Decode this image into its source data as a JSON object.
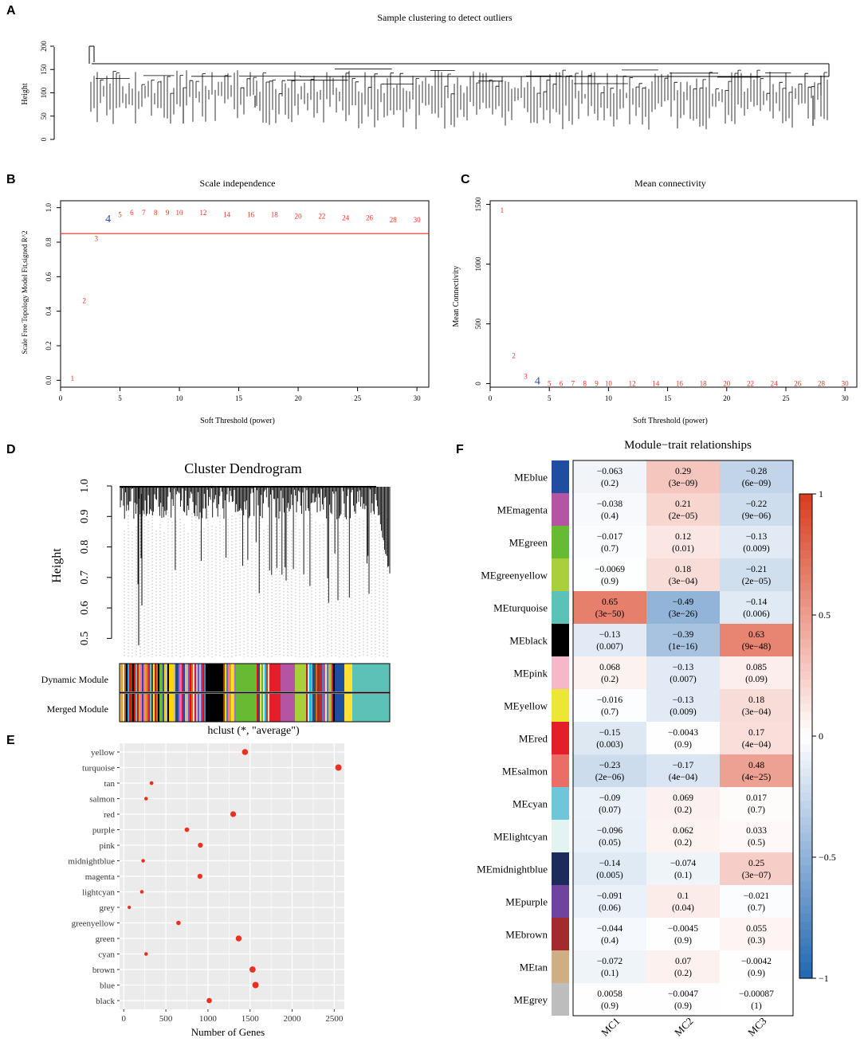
{
  "panels": {
    "A": {
      "letter": "A",
      "chart_data": {
        "type": "dendrogram",
        "title": "Sample clustering to detect outliers",
        "ylabel": "Height",
        "yticks": [
          0,
          50,
          100,
          150,
          200
        ],
        "ylim": [
          0,
          210
        ]
      }
    },
    "B": {
      "letter": "B",
      "chart_data": {
        "type": "scatter",
        "title": "Scale independence",
        "xlabel": "Soft Threshold (power)",
        "ylabel": "Scale Free Topology Model Fit,signed R^2",
        "xlim": [
          0,
          31
        ],
        "ylim": [
          -0.04,
          1.04
        ],
        "xticks": [
          0,
          5,
          10,
          15,
          20,
          25,
          30
        ],
        "yticks": [
          "0.0",
          "0.2",
          "0.4",
          "0.6",
          "0.8",
          "1.0"
        ],
        "hline": 0.85,
        "highlight_power": 4,
        "x": [
          1,
          2,
          3,
          4,
          5,
          6,
          7,
          8,
          9,
          10,
          12,
          14,
          16,
          18,
          20,
          22,
          24,
          26,
          28,
          30
        ],
        "y": [
          0.01,
          0.46,
          0.82,
          0.93,
          0.96,
          0.97,
          0.97,
          0.97,
          0.97,
          0.97,
          0.97,
          0.96,
          0.96,
          0.96,
          0.95,
          0.95,
          0.94,
          0.94,
          0.93,
          0.93
        ]
      }
    },
    "C": {
      "letter": "C",
      "chart_data": {
        "type": "scatter",
        "title": "Mean connectivity",
        "xlabel": "Soft Threshold (power)",
        "ylabel": "Mean Connectivity",
        "xlim": [
          0,
          31
        ],
        "ylim": [
          -30,
          1530
        ],
        "xticks": [
          0,
          5,
          10,
          15,
          20,
          25,
          30
        ],
        "yticks": [
          0,
          500,
          1000,
          1500
        ],
        "highlight_power": 4,
        "x": [
          1,
          2,
          3,
          4,
          5,
          6,
          7,
          8,
          9,
          10,
          12,
          14,
          16,
          18,
          20,
          22,
          24,
          26,
          28,
          30
        ],
        "y": [
          1450,
          235,
          60,
          12,
          1,
          0,
          0,
          0,
          0,
          0,
          0,
          0,
          0,
          0,
          0,
          0,
          0,
          0,
          0,
          0
        ]
      }
    },
    "D": {
      "letter": "D",
      "chart_data": {
        "type": "dendrogram",
        "title": "Cluster Dendrogram",
        "ylabel": "Height",
        "yticks": [
          "0.5",
          "0.6",
          "0.7",
          "0.8",
          "0.9",
          "1.0"
        ],
        "ylim": [
          0.42,
          1.0
        ],
        "row_labels": [
          "Dynamic Module",
          "Merged Module"
        ],
        "footer": "hclust (*, \"average\")",
        "color_bar": [
          "#a0522d",
          "#6a5acd",
          "#c8a77e",
          "#d2b48c",
          "#8b4513",
          "#b22222",
          "#ff69b4",
          "#f5deb3",
          "#00bfff",
          "#9370db",
          "#c0c0c0",
          "#daa520",
          "#000000",
          "#9acd32",
          "#dc143c",
          "#4682b4",
          "#66bb33",
          "#ffd700",
          "#ff0000",
          "#b44daa",
          "#2f4f4f",
          "#ffe135",
          "#1f4ea0",
          "#d2691e",
          "#5cc2b8"
        ]
      }
    },
    "E": {
      "letter": "E",
      "chart_data": {
        "type": "scatter",
        "xlabel": "Number of Genes",
        "xlim": [
          -50,
          2620
        ],
        "xticks": [
          0,
          500,
          1000,
          1500,
          2000,
          2500
        ],
        "categories": [
          "yellow",
          "turquoise",
          "tan",
          "salmon",
          "red",
          "purple",
          "pink",
          "midnightblue",
          "magenta",
          "lightcyan",
          "grey",
          "greenyellow",
          "green",
          "cyan",
          "brown",
          "blue",
          "black"
        ],
        "values": [
          1440,
          2550,
          330,
          265,
          1300,
          750,
          910,
          230,
          905,
          215,
          65,
          650,
          1365,
          265,
          1530,
          1565,
          1015
        ]
      }
    },
    "F": {
      "letter": "F",
      "chart_data": {
        "type": "heatmap",
        "title": "Module−trait relationships",
        "columns": [
          "MC1",
          "MC2",
          "MC3"
        ],
        "rows": [
          {
            "name": "MEblue",
            "swatch": "#1f4ea0",
            "values": [
              "−0.063",
              "0.29",
              "−0.28"
            ],
            "pvalues": [
              "(0.2)",
              "(3e−09)",
              "(6e−09)"
            ],
            "r": [
              -0.063,
              0.29,
              -0.28
            ]
          },
          {
            "name": "MEmagenta",
            "swatch": "#b454a2",
            "values": [
              "−0.038",
              "0.21",
              "−0.22"
            ],
            "pvalues": [
              "(0.4)",
              "(2e−05)",
              "(9e−06)"
            ],
            "r": [
              -0.038,
              0.21,
              -0.22
            ]
          },
          {
            "name": "MEgreen",
            "swatch": "#66bb33",
            "values": [
              "−0.017",
              "0.12",
              "−0.13"
            ],
            "pvalues": [
              "(0.7)",
              "(0.01)",
              "(0.009)"
            ],
            "r": [
              -0.017,
              0.12,
              -0.13
            ]
          },
          {
            "name": "MEgreenyellow",
            "swatch": "#a9cf3c",
            "values": [
              "−0.0069",
              "0.18",
              "−0.21"
            ],
            "pvalues": [
              "(0.9)",
              "(3e−04)",
              "(2e−05)"
            ],
            "r": [
              -0.0069,
              0.18,
              -0.21
            ]
          },
          {
            "name": "MEturquoise",
            "swatch": "#5cc2b8",
            "values": [
              "0.65",
              "−0.49",
              "−0.14"
            ],
            "pvalues": [
              "(3e−50)",
              "(3e−26)",
              "(0.006)"
            ],
            "r": [
              0.65,
              -0.49,
              -0.14
            ]
          },
          {
            "name": "MEblack",
            "swatch": "#000000",
            "values": [
              "−0.13",
              "−0.39",
              "0.63"
            ],
            "pvalues": [
              "(0.007)",
              "(1e−16)",
              "(9e−48)"
            ],
            "r": [
              -0.13,
              -0.39,
              0.63
            ]
          },
          {
            "name": "MEpink",
            "swatch": "#f6b8c8",
            "values": [
              "0.068",
              "−0.13",
              "0.085"
            ],
            "pvalues": [
              "(0.2)",
              "(0.007)",
              "(0.09)"
            ],
            "r": [
              0.068,
              -0.13,
              0.085
            ]
          },
          {
            "name": "MEyellow",
            "swatch": "#ece635",
            "values": [
              "−0.016",
              "−0.13",
              "0.18"
            ],
            "pvalues": [
              "(0.7)",
              "(0.009)",
              "(3e−04)"
            ],
            "r": [
              -0.016,
              -0.13,
              0.18
            ]
          },
          {
            "name": "MEred",
            "swatch": "#e3202a",
            "values": [
              "−0.15",
              "−0.0043",
              "0.17"
            ],
            "pvalues": [
              "(0.003)",
              "(0.9)",
              "(4e−04)"
            ],
            "r": [
              -0.15,
              -0.0043,
              0.17
            ]
          },
          {
            "name": "MEsalmon",
            "swatch": "#ea6e67",
            "values": [
              "−0.23",
              "−0.17",
              "0.48"
            ],
            "pvalues": [
              "(2e−06)",
              "(4e−04)",
              "(4e−25)"
            ],
            "r": [
              -0.23,
              -0.17,
              0.48
            ]
          },
          {
            "name": "MEcyan",
            "swatch": "#6ec6d8",
            "values": [
              "−0.09",
              "0.069",
              "0.017"
            ],
            "pvalues": [
              "(0.07)",
              "(0.2)",
              "(0.7)"
            ],
            "r": [
              -0.09,
              0.069,
              0.017
            ]
          },
          {
            "name": "MElightcyan",
            "swatch": "#e2f3f2",
            "values": [
              "−0.096",
              "0.062",
              "0.033"
            ],
            "pvalues": [
              "(0.05)",
              "(0.2)",
              "(0.5)"
            ],
            "r": [
              -0.096,
              0.062,
              0.033
            ]
          },
          {
            "name": "MEmidnightblue",
            "swatch": "#1d2b5c",
            "values": [
              "−0.14",
              "−0.074",
              "0.25"
            ],
            "pvalues": [
              "(0.005)",
              "(0.1)",
              "(3e−07)"
            ],
            "r": [
              -0.14,
              -0.074,
              0.25
            ]
          },
          {
            "name": "MEpurple",
            "swatch": "#6f44a0",
            "values": [
              "−0.091",
              "0.1",
              "−0.021"
            ],
            "pvalues": [
              "(0.06)",
              "(0.04)",
              "(0.7)"
            ],
            "r": [
              -0.091,
              0.1,
              -0.021
            ]
          },
          {
            "name": "MEbrown",
            "swatch": "#a32b2d",
            "values": [
              "−0.044",
              "−0.0045",
              "0.055"
            ],
            "pvalues": [
              "(0.4)",
              "(0.9)",
              "(0.3)"
            ],
            "r": [
              -0.044,
              -0.0045,
              0.055
            ]
          },
          {
            "name": "MEtan",
            "swatch": "#cfae84",
            "values": [
              "−0.072",
              "0.07",
              "−0.0042"
            ],
            "pvalues": [
              "(0.1)",
              "(0.2)",
              "(0.9)"
            ],
            "r": [
              -0.072,
              0.07,
              -0.0042
            ]
          },
          {
            "name": "MEgrey",
            "swatch": "#bdbdbd",
            "values": [
              "0.0058",
              "−0.0047",
              "−0.00087"
            ],
            "pvalues": [
              "(0.9)",
              "(0.9)",
              "(1)"
            ],
            "r": [
              0.0058,
              -0.0047,
              -0.00087
            ]
          }
        ],
        "legend_ticks": [
          "1",
          "0.5",
          "0",
          "−0.5",
          "−1"
        ],
        "legend_values": [
          1,
          0.5,
          0,
          -0.5,
          -1
        ]
      }
    }
  },
  "colors": {
    "point_red": "#e8321f",
    "highlight_blue": "#2b4ca8",
    "heat_pos": "#d93b1f",
    "heat_neg": "#2166b0"
  }
}
